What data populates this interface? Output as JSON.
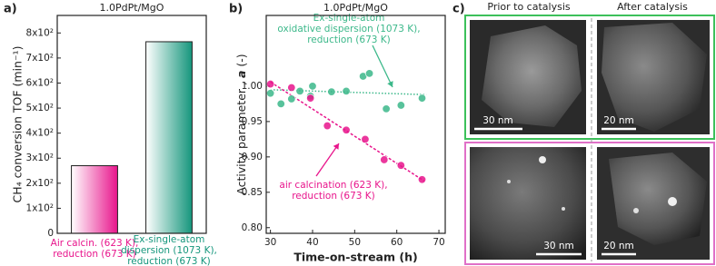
{
  "panel_labels": [
    "a)",
    "b)",
    "c)"
  ],
  "chart_data": [
    {
      "type": "bar",
      "title": "1.0PdPt/MgO",
      "ylabel": "CH₄ conversion TOF (min⁻¹)",
      "categories": [
        [
          "Air calcin. (623 K),",
          "reduction (673 K)"
        ],
        [
          "Ex-single-atom",
          "dispersion (1073 K),",
          "reduction (673 K)"
        ]
      ],
      "values": [
        270,
        765
      ],
      "colors": [
        "#e8158c",
        "#15967c"
      ],
      "ylim": [
        0,
        870
      ],
      "yticks": [
        0,
        {
          "value": 100,
          "label": "1x10²"
        },
        {
          "value": 200,
          "label": "2x10²"
        },
        {
          "value": 300,
          "label": "3x10²"
        },
        {
          "value": 400,
          "label": "4x10²"
        },
        {
          "value": 500,
          "label": "5x10²"
        },
        {
          "value": 600,
          "label": "6x10²"
        },
        {
          "value": 700,
          "label": "7x10²"
        },
        {
          "value": 800,
          "label": "8x10²"
        }
      ]
    },
    {
      "type": "scatter",
      "title": "1.0PdPt/MgO",
      "xlabel": "Time-on-stream (h)",
      "ylabel": [
        "Activity parameter , ",
        "a",
        " (-)"
      ],
      "series": [
        {
          "color": "#3cb88a",
          "x": [
            30,
            32.5,
            35,
            37,
            39.5,
            40,
            44.5,
            48,
            52,
            53.5,
            57.5,
            61,
            66
          ],
          "values": [
            0.99,
            0.975,
            0.982,
            0.993,
            0.986,
            1.0,
            0.992,
            0.993,
            1.014,
            1.018,
            0.968,
            0.973,
            0.983
          ]
        },
        {
          "color": "#e8158c",
          "x": [
            30,
            35,
            39.5,
            43.5,
            48,
            52.5,
            57,
            61,
            66
          ],
          "values": [
            1.003,
            0.998,
            0.983,
            0.944,
            0.938,
            0.925,
            0.896,
            0.888,
            0.868
          ]
        }
      ],
      "trendlines": [
        {
          "color": "#3cb88a",
          "x": [
            30,
            67
          ],
          "y": [
            0.995,
            0.988
          ]
        },
        {
          "color": "#e8158c",
          "x": [
            30,
            66.5
          ],
          "y": [
            1.006,
            0.866
          ]
        }
      ],
      "annotations": [
        {
          "color": "#3cb88a",
          "lines": [
            "Ex-single-atom",
            "oxidative dispersion (1073 K),",
            "reduction (673 K)"
          ]
        },
        {
          "color": "#e8158c",
          "lines": [
            "air calcination (623 K),",
            "reduction (673 K)"
          ]
        }
      ],
      "xlim": [
        29,
        71.5
      ],
      "ylim": [
        0.792,
        1.1
      ],
      "xticks": [
        30,
        40,
        50,
        60,
        70
      ],
      "yticks": [
        {
          "value": 0.8,
          "label": "0.80"
        },
        {
          "value": 0.85,
          "label": "0.85"
        },
        {
          "value": 0.9,
          "label": "0.90"
        },
        {
          "value": 0.95,
          "label": "0.95"
        },
        {
          "value": 1.0,
          "label": "1.00"
        }
      ]
    }
  ],
  "microscopy": {
    "headers": [
      "Prior to catalysis",
      "After catalysis"
    ],
    "scale_bars": [
      [
        "30 nm",
        "20 nm"
      ],
      [
        "30 nm",
        "20 nm"
      ]
    ]
  }
}
